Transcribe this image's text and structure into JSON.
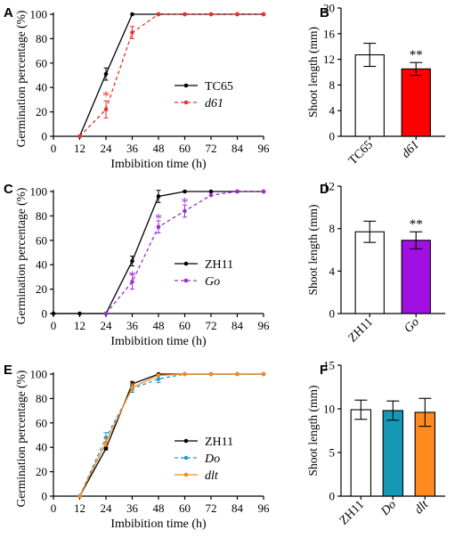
{
  "chart_data": [
    {
      "panel": "A",
      "type": "line",
      "xlabel": "Imbibition time (h)",
      "ylabel": "Germination percentage (%)",
      "x": [
        0,
        12,
        24,
        36,
        48,
        60,
        72,
        84,
        96
      ],
      "x_ticks": [
        "0",
        "12",
        "24",
        "36",
        "48",
        "60",
        "72",
        "84",
        "96"
      ],
      "y_ticks": [
        "0",
        "20",
        "40",
        "60",
        "80",
        "100"
      ],
      "xlim": [
        0,
        96
      ],
      "ylim": [
        0,
        100
      ],
      "legend_position": "middle-right",
      "series": [
        {
          "name": "TC65",
          "italic": false,
          "color": "#000000",
          "dashed": false,
          "x": [
            12,
            24,
            36,
            48,
            60,
            72,
            84,
            96
          ],
          "values": [
            0,
            51,
            100,
            100,
            100,
            100,
            100,
            100
          ],
          "errors": [
            0,
            5,
            0,
            0,
            0,
            0,
            0,
            0
          ]
        },
        {
          "name": "d61",
          "italic": true,
          "color": "#e8322b",
          "dashed": true,
          "x": [
            12,
            24,
            36,
            48,
            60,
            72,
            84,
            96
          ],
          "values": [
            0,
            22,
            85,
            100,
            100,
            100,
            100,
            100
          ],
          "errors": [
            0,
            7,
            5,
            0,
            0,
            0,
            0,
            0
          ]
        }
      ],
      "annotations": [
        {
          "x": 24,
          "y": 35,
          "text": "*",
          "color": "#e8322b"
        }
      ]
    },
    {
      "panel": "B",
      "type": "bar",
      "ylabel": "Shoot length (mm)",
      "categories": [
        {
          "label": "TC65",
          "italic": false
        },
        {
          "label": "d61",
          "italic": true
        }
      ],
      "values": [
        12.7,
        10.5
      ],
      "errors": [
        1.8,
        1.0
      ],
      "colors": [
        "#ffffff",
        "#ff0000"
      ],
      "y_ticks": [
        "0",
        "4",
        "8",
        "12",
        "16",
        "20"
      ],
      "ylim": [
        0,
        20
      ],
      "annotations": [
        {
          "bar": 1,
          "text": "**"
        }
      ]
    },
    {
      "panel": "C",
      "type": "line",
      "xlabel": "Imbibition time (h)",
      "ylabel": "Germination percentage (%)",
      "x": [
        0,
        12,
        24,
        36,
        48,
        60,
        72,
        84,
        96
      ],
      "x_ticks": [
        "0",
        "12",
        "24",
        "36",
        "48",
        "60",
        "72",
        "84",
        "96"
      ],
      "y_ticks": [
        "0",
        "20",
        "40",
        "60",
        "80",
        "100"
      ],
      "xlim": [
        0,
        96
      ],
      "ylim": [
        0,
        100
      ],
      "legend_position": "middle-right",
      "series": [
        {
          "name": "ZH11",
          "italic": false,
          "color": "#000000",
          "dashed": false,
          "x": [
            0,
            12,
            24,
            36,
            48,
            60,
            72,
            84,
            96
          ],
          "values": [
            0,
            0,
            0,
            43,
            96,
            100,
            100,
            100,
            100
          ],
          "errors": [
            0,
            0,
            0,
            4,
            5,
            0,
            0,
            0,
            0
          ]
        },
        {
          "name": "Go",
          "italic": true,
          "color": "#9b30d0",
          "dashed": true,
          "x": [
            24,
            36,
            48,
            60,
            72,
            84,
            96
          ],
          "values": [
            0,
            26,
            71,
            84,
            97,
            100,
            100
          ],
          "errors": [
            0,
            6,
            5,
            5,
            0,
            0,
            0
          ]
        }
      ],
      "annotations": [
        {
          "x": 36,
          "y": 33,
          "text": "*",
          "color": "#9b30d0"
        },
        {
          "x": 48,
          "y": 80,
          "text": "*",
          "color": "#9b30d0"
        },
        {
          "x": 60,
          "y": 93,
          "text": "*",
          "color": "#9b30d0"
        }
      ]
    },
    {
      "panel": "D",
      "type": "bar",
      "ylabel": "Shoot length (mm)",
      "categories": [
        {
          "label": "ZH11",
          "italic": false
        },
        {
          "label": "Go",
          "italic": true
        }
      ],
      "values": [
        7.7,
        6.9
      ],
      "errors": [
        1.0,
        0.8
      ],
      "colors": [
        "#ffffff",
        "#a010e0"
      ],
      "y_ticks": [
        "0",
        "4",
        "8",
        "12"
      ],
      "ylim": [
        0,
        12
      ],
      "annotations": [
        {
          "bar": 1,
          "text": "**"
        }
      ]
    },
    {
      "panel": "E",
      "type": "line",
      "xlabel": "Imbibition time (h)",
      "ylabel": "Germination percentage (%)",
      "x": [
        0,
        12,
        24,
        36,
        48,
        60,
        72,
        84,
        96
      ],
      "x_ticks": [
        "0",
        "12",
        "24",
        "36",
        "48",
        "60",
        "72",
        "84",
        "96"
      ],
      "y_ticks": [
        "0",
        "20",
        "40",
        "60",
        "80",
        "100"
      ],
      "xlim": [
        0,
        96
      ],
      "ylim": [
        0,
        100
      ],
      "legend_position": "middle-right",
      "series": [
        {
          "name": "ZH11",
          "italic": false,
          "color": "#000000",
          "dashed": false,
          "x": [
            12,
            24,
            36,
            48,
            60,
            72,
            84,
            96
          ],
          "values": [
            0,
            39,
            92,
            100,
            100,
            100,
            100,
            100
          ],
          "errors": [
            0,
            1,
            2,
            0,
            0,
            0,
            0,
            0
          ]
        },
        {
          "name": "Do",
          "italic": true,
          "color": "#1f9ec9",
          "dashed": true,
          "x": [
            12,
            24,
            36,
            48,
            60,
            72,
            84,
            96
          ],
          "values": [
            0,
            48,
            88,
            96,
            100,
            100,
            100,
            100
          ],
          "errors": [
            0,
            4,
            3,
            3,
            0,
            0,
            0,
            0
          ]
        },
        {
          "name": "dlt",
          "italic": true,
          "color": "#f58a1f",
          "dashed": false,
          "x": [
            12,
            24,
            36,
            48,
            60,
            72,
            84,
            96
          ],
          "values": [
            0,
            44,
            89,
            99,
            100,
            100,
            100,
            100
          ],
          "errors": [
            0,
            3,
            3,
            0,
            0,
            0,
            0,
            0
          ]
        }
      ],
      "annotations": []
    },
    {
      "panel": "F",
      "type": "bar",
      "ylabel": "Shoot length (mm)",
      "categories": [
        {
          "label": "ZH11",
          "italic": false
        },
        {
          "label": "Do",
          "italic": true
        },
        {
          "label": "dlt",
          "italic": true
        }
      ],
      "values": [
        9.9,
        9.8,
        9.6
      ],
      "errors": [
        1.1,
        1.1,
        1.6
      ],
      "colors": [
        "#ffffff",
        "#1598b5",
        "#ff8a1e"
      ],
      "y_ticks": [
        "0",
        "5",
        "10",
        "15"
      ],
      "ylim": [
        0,
        15
      ],
      "annotations": []
    }
  ]
}
